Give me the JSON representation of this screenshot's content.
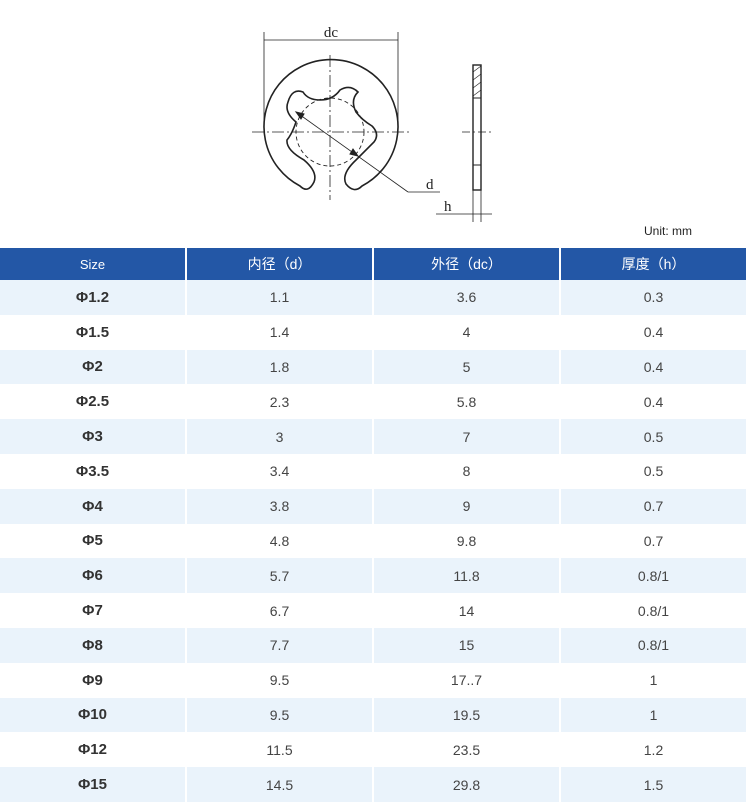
{
  "drawing": {
    "dim_dc": "dc",
    "dim_d": "d",
    "dim_h": "h"
  },
  "unit": "Unit: mm",
  "table": {
    "header": [
      "Size",
      "内径（d）",
      "外径（dc）",
      "厚度（h）"
    ],
    "rows": [
      [
        "Φ1.2",
        "1.1",
        "3.6",
        "0.3"
      ],
      [
        "Φ1.5",
        "1.4",
        "4",
        "0.4"
      ],
      [
        "Φ2",
        "1.8",
        "5",
        "0.4"
      ],
      [
        "Φ2.5",
        "2.3",
        "5.8",
        "0.4"
      ],
      [
        "Φ3",
        "3",
        "7",
        "0.5"
      ],
      [
        "Φ3.5",
        "3.4",
        "8",
        "0.5"
      ],
      [
        "Φ4",
        "3.8",
        "9",
        "0.7"
      ],
      [
        "Φ5",
        "4.8",
        "9.8",
        "0.7"
      ],
      [
        "Φ6",
        "5.7",
        "11.8",
        "0.8/1"
      ],
      [
        "Φ7",
        "6.7",
        "14",
        "0.8/1"
      ],
      [
        "Φ8",
        "7.7",
        "15",
        "0.8/1"
      ],
      [
        "Φ9",
        "9.5",
        "17..7",
        "1"
      ],
      [
        "Φ10",
        "9.5",
        "19.5",
        "1"
      ],
      [
        "Φ12",
        "11.5",
        "23.5",
        "1.2"
      ],
      [
        "Φ15",
        "14.5",
        "29.8",
        "1.5"
      ]
    ]
  }
}
